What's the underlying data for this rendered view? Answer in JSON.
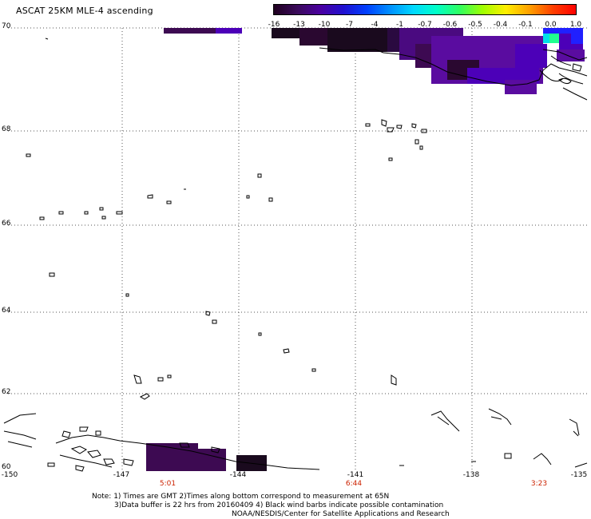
{
  "title": "ASCAT 25KM MLE-4 ascending",
  "colorbar": {
    "ticks": [
      "-16",
      "-13",
      "-10",
      "-7",
      "-4",
      "-1",
      "-0.7",
      "-0.6",
      "-0.5",
      "-0.4",
      "-0.1",
      "0.0",
      "1.0"
    ],
    "colors": [
      "#200020",
      "#3a0a5a",
      "#4a00a0",
      "#2010d0",
      "#0040ff",
      "#0090ff",
      "#00d8ff",
      "#00ffc8",
      "#30ff60",
      "#a0ff00",
      "#ffee00",
      "#ffa000",
      "#ff4000",
      "#ff0000"
    ]
  },
  "lat_labels": [
    "70",
    "68",
    "66",
    "64",
    "62",
    "60"
  ],
  "lon_labels": [
    "-150",
    "-147",
    "-144",
    "-141",
    "-138",
    "-135"
  ],
  "time_labels": [
    "5:01",
    "6:44",
    "3:23"
  ],
  "notes": {
    "line1": "Note: 1) Times are GMT 2)Times along bottom correspond to measurement at 65N",
    "line2": "3)Data buffer is 22 hrs from 20160409 4) Black wind barbs indicate possible contamination",
    "line3": "NOAA/NESDIS/Center for Satellite Applications and Research"
  },
  "data_colors": {
    "dark": "#1a0a1e",
    "deep_purple": "#3d0a52",
    "purple": "#5a0ca0",
    "violet": "#4c00b8",
    "blue": "#2020ff",
    "cyan": "#00e0e8",
    "green": "#20ff90"
  },
  "icons": {
    "coastline": "coastline-outline",
    "grid": "dotted-gridline"
  }
}
